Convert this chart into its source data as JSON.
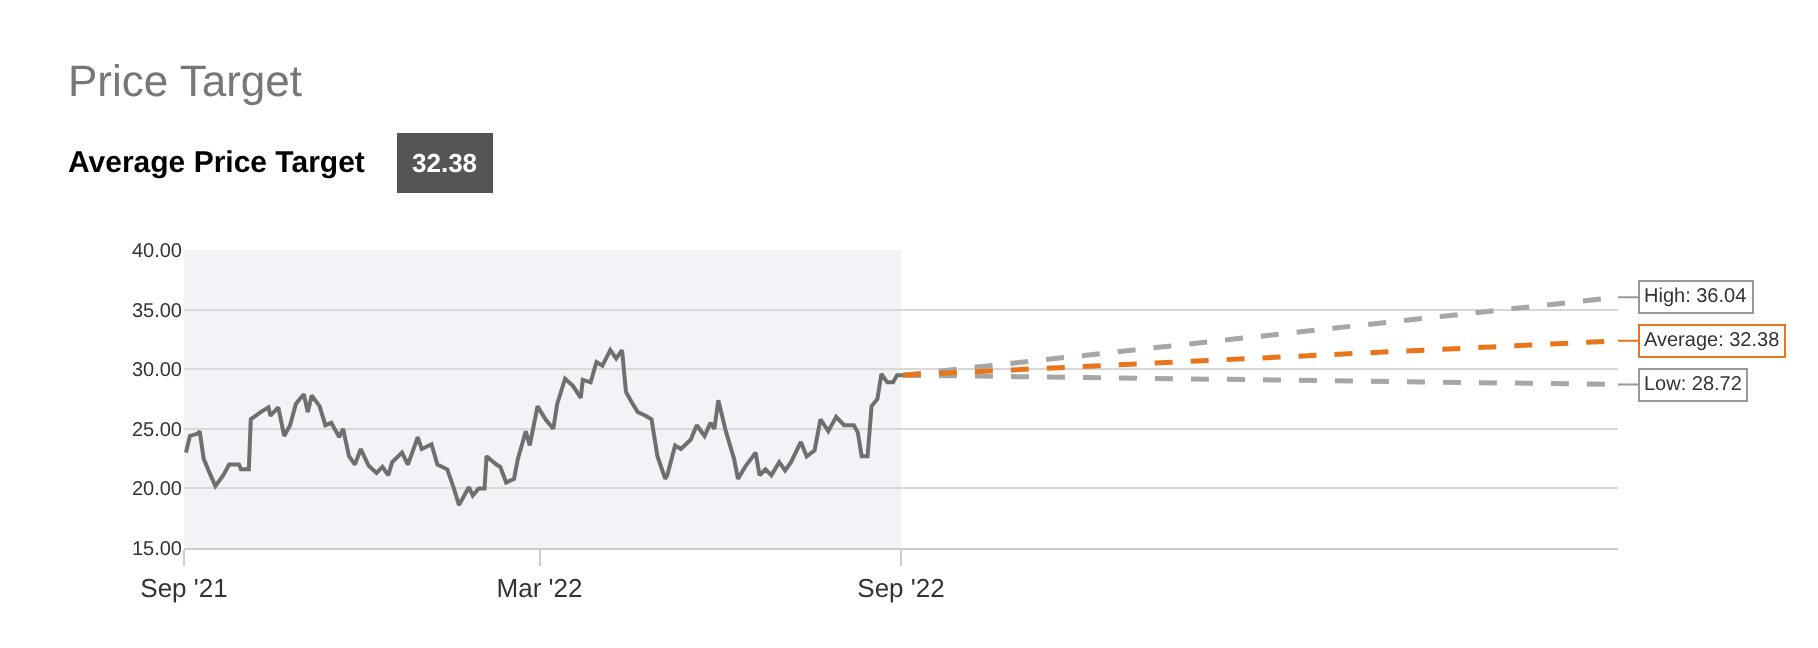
{
  "chart_data": {
    "type": "line",
    "title": "Price Target",
    "subtitle": "Average Price Target",
    "annotations": [
      "32.38",
      {
        "text": "High: 36.04",
        "x": "2023-09-01",
        "y": 36.04
      },
      {
        "text": "Average: 32.38",
        "x": "2023-09-01",
        "y": 32.38
      },
      {
        "text": "Low: 28.72",
        "x": "2023-09-01",
        "y": 28.72
      }
    ],
    "series": [
      {
        "color": "#6f6f6f",
        "line_style": "solid",
        "x": [
          "2021-09-02",
          "2021-09-04",
          "2021-09-08",
          "2021-09-09",
          "2021-09-11",
          "2021-09-14",
          "2021-09-17",
          "2021-09-21",
          "2021-09-24",
          "2021-09-29",
          "2021-09-30",
          "2021-10-04",
          "2021-10-05",
          "2021-10-10",
          "2021-10-14",
          "2021-10-15",
          "2021-10-19",
          "2021-10-22",
          "2021-10-25",
          "2021-10-28",
          "2021-11-01",
          "2021-11-03",
          "2021-11-05",
          "2021-11-09",
          "2021-11-12",
          "2021-11-15",
          "2021-11-19",
          "2021-11-21",
          "2021-11-24",
          "2021-11-27",
          "2021-11-30",
          "2021-12-04",
          "2021-12-08",
          "2021-12-11",
          "2021-12-14",
          "2021-12-16",
          "2021-12-21",
          "2021-12-24",
          "2021-12-29",
          "2021-12-31",
          "2022-01-05",
          "2022-01-08",
          "2022-01-13",
          "2022-01-16",
          "2022-01-19",
          "2022-01-24",
          "2022-01-26",
          "2022-01-29",
          "2022-02-01",
          "2022-02-02",
          "2022-02-07",
          "2022-02-09",
          "2022-02-12",
          "2022-02-16",
          "2022-02-18",
          "2022-02-22",
          "2022-02-24",
          "2022-02-28",
          "2022-03-04",
          "2022-03-08",
          "2022-03-10",
          "2022-03-14",
          "2022-03-18",
          "2022-03-22",
          "2022-03-23",
          "2022-03-27",
          "2022-03-30",
          "2022-04-02",
          "2022-04-06",
          "2022-04-09",
          "2022-04-12",
          "2022-04-14",
          "2022-04-17",
          "2022-04-20",
          "2022-04-24",
          "2022-04-27",
          "2022-04-30",
          "2022-05-04",
          "2022-05-05",
          "2022-05-09",
          "2022-05-12",
          "2022-05-17",
          "2022-05-20",
          "2022-05-24",
          "2022-05-27",
          "2022-05-29",
          "2022-05-31",
          "2022-06-04",
          "2022-06-08",
          "2022-06-10",
          "2022-06-14",
          "2022-06-19",
          "2022-06-21",
          "2022-06-24",
          "2022-06-27",
          "2022-07-01",
          "2022-07-04",
          "2022-07-07",
          "2022-07-12",
          "2022-07-15",
          "2022-07-19",
          "2022-07-22",
          "2022-07-26",
          "2022-07-30",
          "2022-08-03",
          "2022-08-08",
          "2022-08-10",
          "2022-08-12",
          "2022-08-15",
          "2022-08-17",
          "2022-08-20",
          "2022-08-22",
          "2022-08-25",
          "2022-08-28",
          "2022-08-30",
          "2022-09-02"
        ],
        "values": [
          23.0,
          24.4,
          24.6,
          24.8,
          22.5,
          21.3,
          20.2,
          21.1,
          22.0,
          22.0,
          21.6,
          21.6,
          25.8,
          26.4,
          26.8,
          26.1,
          26.8,
          24.4,
          25.3,
          27.1,
          27.9,
          26.4,
          27.8,
          26.9,
          25.3,
          25.5,
          24.3,
          25.0,
          22.7,
          22.0,
          23.3,
          21.9,
          21.3,
          21.8,
          21.1,
          22.2,
          23.0,
          22.0,
          24.3,
          23.3,
          23.7,
          22.0,
          21.6,
          20.2,
          18.6,
          20.1,
          19.4,
          20.0,
          20.0,
          22.7,
          22.0,
          21.8,
          20.5,
          20.8,
          22.5,
          24.8,
          23.6,
          26.9,
          25.8,
          25.0,
          27.1,
          29.2,
          28.6,
          27.6,
          29.1,
          28.9,
          30.6,
          30.3,
          31.6,
          30.9,
          31.6,
          28.1,
          27.2,
          26.4,
          26.1,
          25.8,
          22.7,
          20.8,
          21.1,
          23.6,
          23.3,
          24.1,
          25.3,
          24.4,
          25.5,
          25.0,
          27.4,
          24.7,
          22.5,
          20.8,
          21.9,
          23.0,
          21.1,
          21.6,
          21.1,
          22.2,
          21.5,
          22.2,
          23.9,
          22.7,
          23.2,
          25.8,
          24.8,
          26.0,
          25.3,
          25.3,
          24.7,
          22.7,
          22.7,
          26.9,
          27.5,
          29.6,
          28.9,
          28.9,
          29.5,
          29.5
        ]
      },
      {
        "color": "#a6a6a6",
        "line_style": "dashed",
        "x": [
          "2022-09-02",
          "2023-09-01"
        ],
        "values": [
          29.5,
          36.04
        ]
      },
      {
        "color": "#a6a6a6",
        "line_style": "dashed",
        "x": [
          "2022-09-02",
          "2023-09-01"
        ],
        "values": [
          29.5,
          28.72
        ]
      },
      {
        "color": "#e8751a",
        "line_style": "dashed",
        "x": [
          "2022-09-02",
          "2023-09-01"
        ],
        "values": [
          29.5,
          32.38
        ]
      }
    ],
    "xlim": [
      "2021-09-01",
      "2023-09-01"
    ],
    "xticks": [
      {
        "value": "2021-09-01",
        "label": "Sep '21"
      },
      {
        "value": "2022-03-01",
        "label": "Mar '22"
      },
      {
        "value": "2022-09-01",
        "label": "Sep '22"
      }
    ],
    "ylim": [
      15,
      40
    ],
    "yticks": [
      {
        "value": 15,
        "label": "15.00"
      },
      {
        "value": 20,
        "label": "20.00"
      },
      {
        "value": 25,
        "label": "25.00"
      },
      {
        "value": 30,
        "label": "30.00"
      },
      {
        "value": 35,
        "label": "35.00"
      },
      {
        "value": 40,
        "label": "40.00"
      }
    ],
    "bands": [
      {
        "axis": "x",
        "from": "2021-09-01",
        "to": "2022-09-01",
        "color": "#f2f3f7"
      }
    ],
    "grid": "y",
    "marker": "none"
  }
}
